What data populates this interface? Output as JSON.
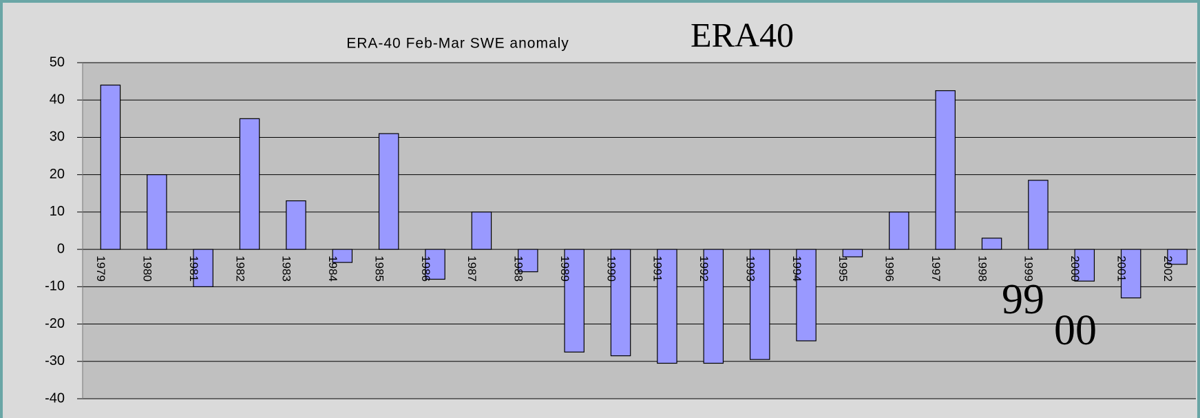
{
  "chart_data": {
    "type": "bar",
    "title": "ERA-40 Feb-Mar SWE anomaly",
    "annotations": [
      "ERA40",
      "99",
      "00"
    ],
    "categories": [
      "1979",
      "1980",
      "1981",
      "1982",
      "1983",
      "1984",
      "1985",
      "1986",
      "1987",
      "1988",
      "1989",
      "1990",
      "1991",
      "1992",
      "1993",
      "1994",
      "1995",
      "1996",
      "1997",
      "1998",
      "1999",
      "2000",
      "2001",
      "2002"
    ],
    "values": [
      44,
      20,
      -10,
      35,
      13,
      -3.5,
      31,
      -8,
      10,
      -6,
      -27.5,
      -28.5,
      -30.5,
      -30.5,
      -29.5,
      -24.5,
      -2,
      10,
      42.5,
      3,
      18.5,
      -8.5,
      -13,
      -4
    ],
    "color": "#9999ff",
    "ylim": [
      -40,
      50
    ],
    "yticks": [
      -40,
      -30,
      -20,
      -10,
      0,
      10,
      20,
      30,
      40,
      50
    ],
    "grid": true
  }
}
